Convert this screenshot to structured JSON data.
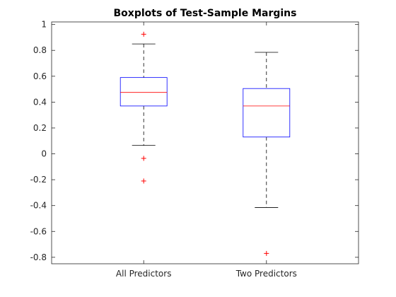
{
  "chart_data": {
    "type": "boxplot",
    "title": "Boxplots of Test-Sample Margins",
    "xlabel": "",
    "ylabel": "",
    "ylim": [
      -0.85,
      1.02
    ],
    "yticks": [
      -0.8,
      -0.6,
      -0.4,
      -0.2,
      0,
      0.2,
      0.4,
      0.6,
      0.8,
      1
    ],
    "ytick_labels": [
      "-0.8",
      "-0.6",
      "-0.4",
      "-0.2",
      "0",
      "0.2",
      "0.4",
      "0.6",
      "0.8",
      "1"
    ],
    "grid": false,
    "categories": [
      "All Predictors",
      "Two Predictors"
    ],
    "boxes": [
      {
        "whisker_low": 0.065,
        "q1": 0.37,
        "median": 0.475,
        "q3": 0.59,
        "whisker_high": 0.85,
        "outliers": [
          0.925,
          -0.035,
          -0.21
        ]
      },
      {
        "whisker_low": -0.415,
        "q1": 0.13,
        "median": 0.37,
        "q3": 0.505,
        "whisker_high": 0.785,
        "outliers": [
          -0.77
        ]
      }
    ],
    "colors": {
      "box": "#0000ff",
      "median": "#ff0000",
      "whisker": "#000000",
      "outlier": "#ff0000",
      "axis": "#262626"
    }
  }
}
